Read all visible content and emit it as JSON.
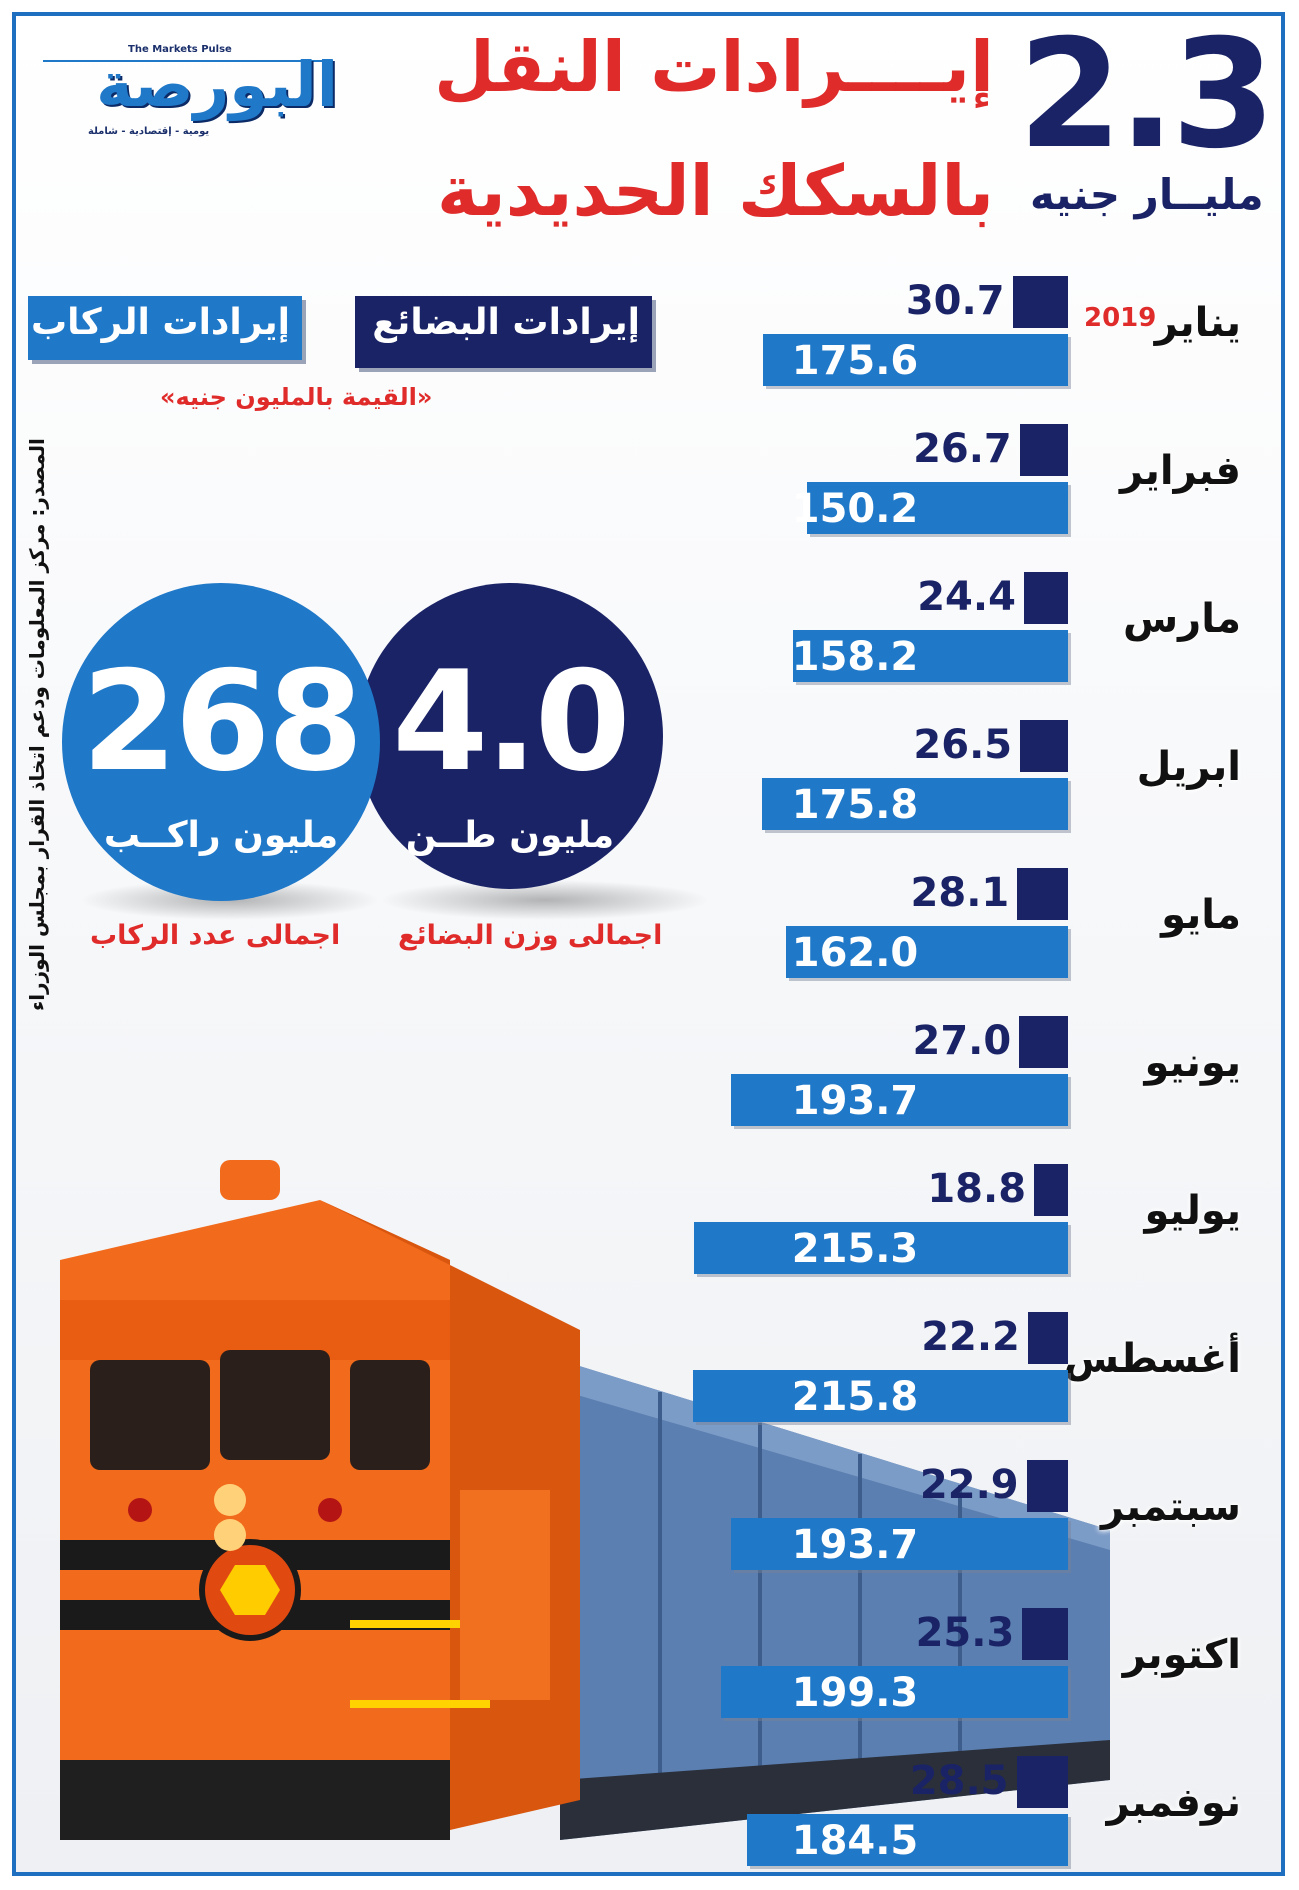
{
  "header": {
    "title_line1": "إيــــرادات النقل",
    "title_line2": "بالسكك الحديدية",
    "total_value": "2.3",
    "total_unit": "مليــار جنيه"
  },
  "logo": {
    "text": "البورصة",
    "tagline_top": "The Markets Pulse",
    "tagline_bottom": "يومية - إقتصادية - شاملة"
  },
  "legend": {
    "goods_label": "إيرادات البضائع",
    "passengers_label": "إيرادات الركاب",
    "unit_note": "«القيمة بالمليون جنيه»"
  },
  "source": "المصدر: مركز المعلومات ودعم اتخاذ القرار بمجلس الوزراء",
  "summary": {
    "goods_weight_value": "4.0",
    "goods_weight_unit": "مليون طــن",
    "goods_weight_caption": "اجمالى وزن البضائع",
    "passengers_value": "268",
    "passengers_unit": "مليون راكــب",
    "passengers_caption": "اجمالى عدد الركاب"
  },
  "colors": {
    "goods": "#1a2366",
    "passengers": "#1f78c8",
    "accent_red": "#e02b2b"
  },
  "chart_data": {
    "type": "bar",
    "year_label": "2019",
    "categories": [
      "يناير",
      "فبراير",
      "مارس",
      "ابريل",
      "مايو",
      "يونيو",
      "يوليو",
      "أغسطس",
      "سبتمبر",
      "اكتوبر",
      "نوفمبر"
    ],
    "series": [
      {
        "name": "إيرادات البضائع",
        "values": [
          30.7,
          26.7,
          24.4,
          26.5,
          28.1,
          27.0,
          18.8,
          22.2,
          22.9,
          25.3,
          28.5
        ]
      },
      {
        "name": "إيرادات الركاب",
        "values": [
          175.6,
          150.2,
          158.2,
          175.8,
          162.0,
          193.7,
          215.3,
          215.8,
          193.7,
          199.3,
          184.5
        ]
      }
    ]
  }
}
